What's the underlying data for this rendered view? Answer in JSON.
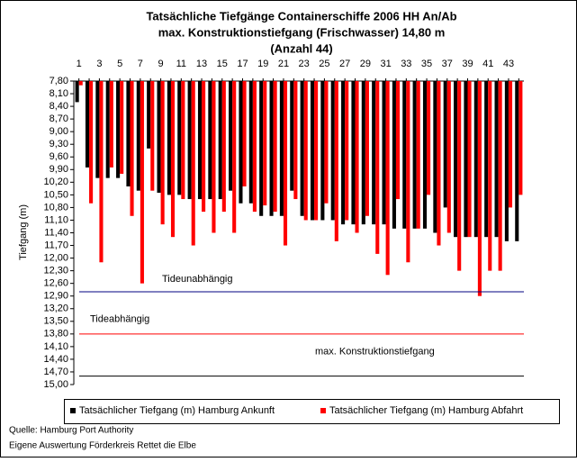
{
  "chart_data": {
    "type": "bar",
    "title": [
      "Tatsächliche Tiefgänge Containerschiffe 2006 HH An/Ab",
      "max. Konstruktionstiefgang (Frischwasser) 14,80 m",
      "(Anzahl 44)"
    ],
    "y_label": "Tiefgang (m)",
    "y_inverted": true,
    "categories": [
      "1",
      null,
      "3",
      null,
      "5",
      null,
      "7",
      null,
      "9",
      null,
      "11",
      null,
      "13",
      null,
      "15",
      null,
      "17",
      null,
      "19",
      null,
      "21",
      null,
      "23",
      null,
      "25",
      null,
      "27",
      null,
      "29",
      null,
      "31",
      null,
      "33",
      null,
      "35",
      null,
      "37",
      null,
      "39",
      null,
      "41",
      null,
      "43",
      null
    ],
    "series": [
      {
        "name": "Tatsächlicher Tiefgang (m) Hamburg Ankunft",
        "color": "#000000",
        "values": [
          8.3,
          9.85,
          10.1,
          10.1,
          10.1,
          10.3,
          10.4,
          9.4,
          10.45,
          10.5,
          10.5,
          10.6,
          10.6,
          10.6,
          10.6,
          10.4,
          10.7,
          10.7,
          11.0,
          11.0,
          11.0,
          10.4,
          11.0,
          11.1,
          11.1,
          11.1,
          11.2,
          11.2,
          11.2,
          11.2,
          11.2,
          11.3,
          11.3,
          11.3,
          11.3,
          11.4,
          10.8,
          11.5,
          11.5,
          11.5,
          11.5,
          11.5,
          11.6,
          11.6
        ]
      },
      {
        "name": "Tatsächlicher Tiefgang (m) Hamburg Abfahrt",
        "color": "#ff0000",
        "values": [
          7.9,
          10.7,
          12.1,
          9.85,
          10.0,
          11.0,
          12.6,
          10.4,
          11.2,
          11.5,
          10.6,
          11.7,
          10.9,
          11.4,
          10.9,
          11.4,
          10.3,
          10.9,
          10.75,
          10.9,
          11.7,
          10.6,
          11.1,
          11.1,
          10.7,
          11.6,
          11.1,
          11.4,
          11.0,
          11.9,
          12.4,
          10.6,
          12.1,
          11.3,
          10.5,
          11.7,
          11.4,
          12.3,
          11.5,
          12.9,
          12.3,
          12.3,
          10.8,
          10.5
        ]
      }
    ],
    "ylim": [
      7.8,
      15.0
    ],
    "yticks": [
      {
        "value": 7.8,
        "label": "7,80"
      },
      {
        "value": 8.1,
        "label": "8,10"
      },
      {
        "value": 8.4,
        "label": "8,40"
      },
      {
        "value": 8.7,
        "label": "8,70"
      },
      {
        "value": 9.0,
        "label": "9,00"
      },
      {
        "value": 9.3,
        "label": "9,30"
      },
      {
        "value": 9.6,
        "label": "9,60"
      },
      {
        "value": 9.9,
        "label": "9,90"
      },
      {
        "value": 10.2,
        "label": "10,20"
      },
      {
        "value": 10.5,
        "label": "10,50"
      },
      {
        "value": 10.8,
        "label": "10,80"
      },
      {
        "value": 11.1,
        "label": "11,10"
      },
      {
        "value": 11.4,
        "label": "11,40"
      },
      {
        "value": 11.7,
        "label": "11,70"
      },
      {
        "value": 12.0,
        "label": "12,00"
      },
      {
        "value": 12.3,
        "label": "12,30"
      },
      {
        "value": 12.6,
        "label": "12,60"
      },
      {
        "value": 12.9,
        "label": "12,90"
      },
      {
        "value": 13.2,
        "label": "13,20"
      },
      {
        "value": 13.5,
        "label": "13,50"
      },
      {
        "value": 13.8,
        "label": "13,80"
      },
      {
        "value": 14.1,
        "label": "14,10"
      },
      {
        "value": 14.4,
        "label": "14,40"
      },
      {
        "value": 14.7,
        "label": "14,70"
      },
      {
        "value": 15.0,
        "label": "15,00"
      }
    ],
    "reference_lines": [
      {
        "value": 12.8,
        "color": "#000080",
        "label": "Tideunabhängig"
      },
      {
        "value": 13.8,
        "color": "#ff0000",
        "label": "Tideabhängig"
      },
      {
        "value": 14.8,
        "color": "#000000",
        "label": "max. Konstruktionstiefgang"
      }
    ],
    "legend": "bottom",
    "notes": [
      "Quelle: Hamburg Port Authority",
      "Eigene Auswertung Förderkreis Rettet die Elbe"
    ]
  }
}
